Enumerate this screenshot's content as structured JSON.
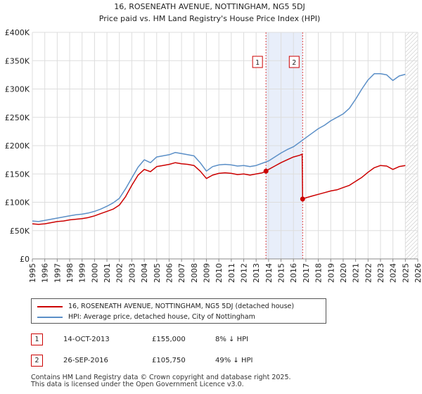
{
  "chart_data": {
    "type": "line",
    "title": "16, ROSENEATH AVENUE, NOTTINGHAM, NG5 5DJ",
    "subtitle": "Price paid vs. HM Land Registry's House Price Index (HPI)",
    "xlabel": "",
    "ylabel": "",
    "xlim": [
      1995,
      2026
    ],
    "ylim": [
      0,
      400000
    ],
    "grid": true,
    "x_ticks": [
      "1995",
      "1996",
      "1997",
      "1998",
      "1999",
      "2000",
      "2001",
      "2002",
      "2003",
      "2004",
      "2005",
      "2006",
      "2007",
      "2008",
      "2009",
      "2010",
      "2011",
      "2012",
      "2013",
      "2014",
      "2015",
      "2016",
      "2017",
      "2018",
      "2019",
      "2020",
      "2021",
      "2022",
      "2023",
      "2024",
      "2025",
      "2026"
    ],
    "y_ticks": [
      "£0",
      "£50K",
      "£100K",
      "£150K",
      "£200K",
      "£250K",
      "£300K",
      "£350K",
      "£400K"
    ],
    "shaded_period": {
      "from": 2013.79,
      "to": 2016.74
    },
    "hatched_after": 2025.0,
    "series": [
      {
        "name": "HPI: Average price, detached house, City of Nottingham",
        "color": "#5b8fc7",
        "x": [
          1995.0,
          1995.5,
          1996.0,
          1996.5,
          1997.0,
          1997.5,
          1998.0,
          1998.5,
          1999.0,
          1999.5,
          2000.0,
          2000.5,
          2001.0,
          2001.5,
          2002.0,
          2002.5,
          2003.0,
          2003.5,
          2004.0,
          2004.5,
          2005.0,
          2005.5,
          2006.0,
          2006.5,
          2007.0,
          2007.5,
          2008.0,
          2008.5,
          2009.0,
          2009.5,
          2010.0,
          2010.5,
          2011.0,
          2011.5,
          2012.0,
          2012.5,
          2013.0,
          2013.5,
          2014.0,
          2014.5,
          2015.0,
          2015.5,
          2016.0,
          2016.5,
          2017.0,
          2017.5,
          2018.0,
          2018.5,
          2019.0,
          2019.5,
          2020.0,
          2020.5,
          2021.0,
          2021.5,
          2022.0,
          2022.5,
          2023.0,
          2023.5,
          2024.0,
          2024.5,
          2025.0
        ],
        "values": [
          67000,
          66000,
          68000,
          70000,
          72000,
          74000,
          76000,
          78000,
          79000,
          81000,
          84000,
          88000,
          93000,
          99000,
          107000,
          124000,
          143000,
          162000,
          175000,
          170000,
          180000,
          182000,
          184000,
          188000,
          186000,
          184000,
          182000,
          170000,
          155000,
          163000,
          166000,
          167000,
          166000,
          164000,
          165000,
          163000,
          165000,
          169000,
          173000,
          180000,
          187000,
          193000,
          198000,
          206000,
          214000,
          222000,
          230000,
          236000,
          244000,
          250000,
          256000,
          266000,
          282000,
          300000,
          316000,
          327000,
          327000,
          325000,
          315000,
          323000,
          326000
        ]
      },
      {
        "name": "16, ROSENEATH AVENUE, NOTTINGHAM, NG5 5DJ (detached house)",
        "color": "#cc0000",
        "x": [
          1995.0,
          1995.5,
          1996.0,
          1996.5,
          1997.0,
          1997.5,
          1998.0,
          1998.5,
          1999.0,
          1999.5,
          2000.0,
          2000.5,
          2001.0,
          2001.5,
          2002.0,
          2002.5,
          2003.0,
          2003.5,
          2004.0,
          2004.5,
          2005.0,
          2005.5,
          2006.0,
          2006.5,
          2007.0,
          2007.5,
          2008.0,
          2008.5,
          2009.0,
          2009.5,
          2010.0,
          2010.5,
          2011.0,
          2011.5,
          2012.0,
          2012.5,
          2013.0,
          2013.5,
          2013.79,
          2014.0,
          2014.5,
          2015.0,
          2015.5,
          2016.0,
          2016.5,
          2016.7,
          2016.74,
          2017.0,
          2017.5,
          2018.0,
          2018.5,
          2019.0,
          2019.5,
          2020.0,
          2020.5,
          2021.0,
          2021.5,
          2022.0,
          2022.5,
          2023.0,
          2023.5,
          2024.0,
          2024.5,
          2025.0
        ],
        "values": [
          62000,
          61000,
          62000,
          64000,
          66000,
          67000,
          69000,
          70000,
          71000,
          73000,
          76000,
          80000,
          84000,
          88000,
          95000,
          110000,
          130000,
          148000,
          158000,
          154000,
          163000,
          165000,
          167000,
          170000,
          168000,
          167000,
          165000,
          155000,
          142000,
          148000,
          151000,
          152000,
          151000,
          149000,
          150000,
          148000,
          150000,
          152000,
          155000,
          158000,
          164000,
          170000,
          175000,
          180000,
          183000,
          185000,
          105750,
          108000,
          111000,
          114000,
          117000,
          120000,
          122000,
          126000,
          130000,
          137000,
          144000,
          153000,
          161000,
          165000,
          164000,
          158000,
          163000,
          165000
        ]
      }
    ],
    "markers": [
      {
        "label": "1",
        "x": 2013.79,
        "value": 155000
      },
      {
        "label": "2",
        "x": 2016.74,
        "value": 105750
      }
    ]
  },
  "legend": {
    "property_label": "16, ROSENEATH AVENUE, NOTTINGHAM, NG5 5DJ (detached house)",
    "hpi_label": "HPI: Average price, detached house, City of Nottingham"
  },
  "annotations": [
    {
      "num": "1",
      "date": "14-OCT-2013",
      "price": "£155,000",
      "delta": "8% ↓ HPI"
    },
    {
      "num": "2",
      "date": "26-SEP-2016",
      "price": "£105,750",
      "delta": "49% ↓ HPI"
    }
  ],
  "footer": {
    "line1": "Contains HM Land Registry data © Crown copyright and database right 2025.",
    "line2": "This data is licensed under the Open Government Licence v3.0."
  },
  "colors": {
    "property": "#cc0000",
    "hpi": "#5b8fc7",
    "shade": "#e8eefa",
    "grid": "#dddddd"
  }
}
